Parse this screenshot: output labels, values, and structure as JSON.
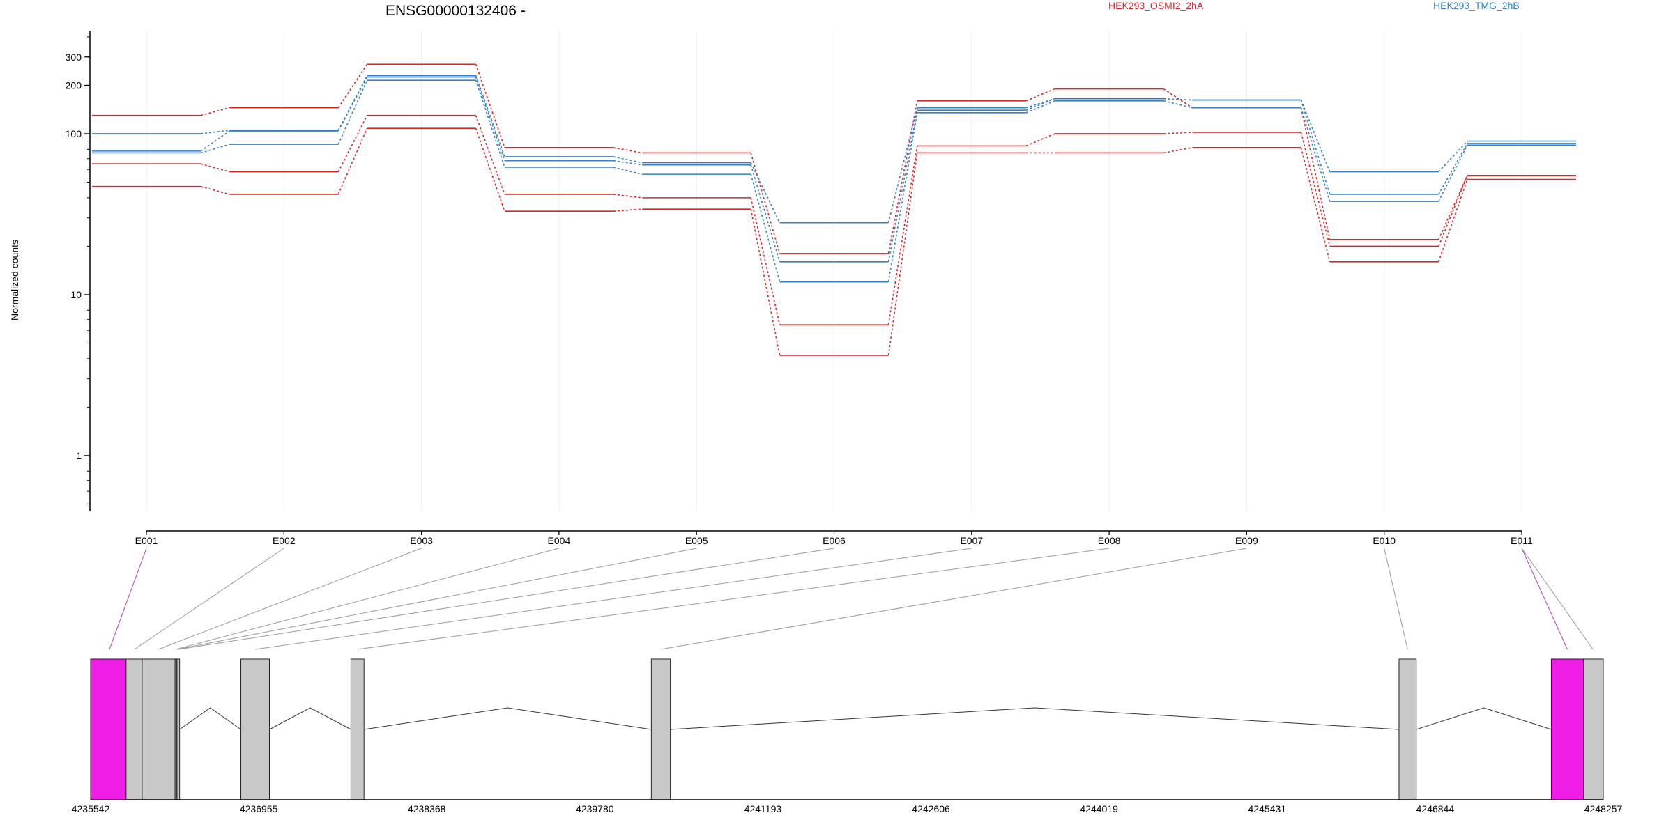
{
  "chart_data": {
    "type": "line",
    "title": "ENSG00000132406 -",
    "xlabel": "",
    "ylabel": "Normalized counts",
    "yscale": "log",
    "ylim": [
      0.45,
      420
    ],
    "y_major_ticks": [
      1,
      10,
      100,
      200,
      300
    ],
    "y_major_tick_labels": [
      "1",
      "10",
      "100",
      "200",
      "300"
    ],
    "categories": [
      "E001",
      "E002",
      "E003",
      "E004",
      "E005",
      "E006",
      "E007",
      "E008",
      "E009",
      "E010",
      "E011"
    ],
    "legend": [
      {
        "label": "HEK293_OSMI2_2hA",
        "color": "#d62728"
      },
      {
        "label": "HEK293_TMG_2hB",
        "color": "#3a7fc1"
      }
    ],
    "grid": "vertical-light",
    "series": [
      {
        "group": "HEK293_OSMI2_2hA",
        "color": "#d62728",
        "values": [
          130,
          145,
          270,
          82,
          76,
          18,
          160,
          190,
          145,
          22,
          55
        ]
      },
      {
        "group": "HEK293_OSMI2_2hA",
        "color": "#d62728",
        "values": [
          65,
          58,
          130,
          42,
          40,
          6.5,
          84,
          100,
          102,
          20,
          55
        ]
      },
      {
        "group": "HEK293_OSMI2_2hA",
        "color": "#d62728",
        "values": [
          47,
          42,
          108,
          33,
          34,
          4.2,
          76,
          76,
          82,
          16,
          52
        ]
      },
      {
        "group": "HEK293_TMG_2hB",
        "color": "#3a7fc1",
        "values": [
          100,
          105,
          230,
          72,
          66,
          28,
          145,
          165,
          162,
          58,
          90
        ]
      },
      {
        "group": "HEK293_TMG_2hB",
        "color": "#3a7fc1",
        "values": [
          78,
          104,
          225,
          68,
          64,
          16,
          140,
          165,
          162,
          42,
          87
        ]
      },
      {
        "group": "HEK293_TMG_2hB",
        "color": "#3a7fc1",
        "values": [
          76,
          86,
          215,
          62,
          56,
          12,
          135,
          160,
          145,
          38,
          85
        ]
      }
    ],
    "gene_model": {
      "coordinate_labels": [
        "4235542",
        "4236955",
        "4238368",
        "4239780",
        "4241193",
        "4242606",
        "4244019",
        "4245431",
        "4246844",
        "4248257"
      ],
      "range_start": 4235542,
      "range_end": 4248257,
      "highlight_color": "#f01de6",
      "exon_color": "#c8c8c8",
      "exons": [
        {
          "id": "E001",
          "start": 4235542,
          "end": 4235840,
          "highlight": true
        },
        {
          "id": "E002",
          "start": 4235840,
          "end": 4235975,
          "highlight": false
        },
        {
          "id": "E003",
          "start": 4235975,
          "end": 4236252,
          "highlight": false
        },
        {
          "id": "E004",
          "start": 4236252,
          "end": 4236265,
          "highlight": false
        },
        {
          "id": "E005",
          "start": 4236265,
          "end": 4236275,
          "highlight": false
        },
        {
          "id": "E006",
          "start": 4236275,
          "end": 4236290,
          "highlight": false
        },
        {
          "id": "E007",
          "start": 4236805,
          "end": 4237045,
          "highlight": false
        },
        {
          "id": "E008",
          "start": 4237730,
          "end": 4237840,
          "highlight": false
        },
        {
          "id": "E009",
          "start": 4240255,
          "end": 4240415,
          "highlight": false
        },
        {
          "id": "E010",
          "start": 4246540,
          "end": 4246685,
          "highlight": false
        },
        {
          "id": "E011",
          "start": 4247820,
          "end": 4248090,
          "highlight": true
        },
        {
          "id": "E011b",
          "start": 4248090,
          "end": 4248257,
          "highlight": false
        }
      ],
      "introns": [
        [
          4236290,
          4236805
        ],
        [
          4237045,
          4237730
        ],
        [
          4237840,
          4240255
        ],
        [
          4240415,
          4246540
        ],
        [
          4246685,
          4247820
        ]
      ],
      "links": [
        {
          "exon": "E001",
          "target": 4235700,
          "highlight": true
        },
        {
          "exon": "E002",
          "target": 4235910,
          "highlight": false
        },
        {
          "exon": "E003",
          "target": 4236112,
          "highlight": false
        },
        {
          "exon": "E004",
          "target": 4236257,
          "highlight": false
        },
        {
          "exon": "E005",
          "target": 4236270,
          "highlight": false
        },
        {
          "exon": "E006",
          "target": 4236282,
          "highlight": false
        },
        {
          "exon": "E007",
          "target": 4236925,
          "highlight": false
        },
        {
          "exon": "E008",
          "target": 4237785,
          "highlight": false
        },
        {
          "exon": "E009",
          "target": 4240335,
          "highlight": false
        },
        {
          "exon": "E010",
          "target": 4246612,
          "highlight": false
        },
        {
          "exon": "E011",
          "target": 4247955,
          "highlight": true
        },
        {
          "exon": "E011",
          "target": 4248170,
          "highlight": false
        }
      ]
    }
  }
}
